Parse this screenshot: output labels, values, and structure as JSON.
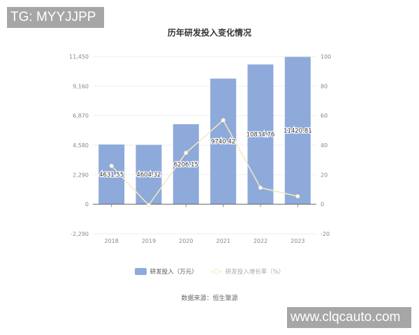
{
  "watermarks": {
    "top_left": "TG: MYYJJPP",
    "bottom_right": "www.clqcauto.com"
  },
  "chart_data": {
    "type": "bar",
    "title": "历年研发投入变化情况",
    "categories": [
      "2018",
      "2019",
      "2020",
      "2021",
      "2022",
      "2023"
    ],
    "series": [
      {
        "name": "研发投入（万元）",
        "type": "bar",
        "axis": "left",
        "color": "#8eaadb",
        "values": [
          4631.55,
          4604.32,
          6206.15,
          9740.42,
          10834.76,
          11420.81
        ],
        "labels": [
          "4631.55",
          "4604.32",
          "6206.15",
          "9740.42",
          "10834.76",
          "11420.81"
        ]
      },
      {
        "name": "研发投入增长率（%）",
        "type": "line",
        "axis": "right",
        "color": "#f6e7c1",
        "values": [
          26.0,
          -0.6,
          34.8,
          56.9,
          11.2,
          5.4
        ]
      }
    ],
    "y_left": {
      "ticks": [
        "11,450",
        "9,160",
        "6,870",
        "4,580",
        "2,290",
        "0",
        "-2,290"
      ],
      "range": [
        -2290,
        11450
      ]
    },
    "y_right": {
      "ticks": [
        "100",
        "80",
        "60",
        "40",
        "20",
        "0",
        "-20"
      ],
      "range": [
        -20,
        100
      ]
    },
    "xlabel": "",
    "ylabel": "",
    "grid": true,
    "legend_position": "bottom"
  },
  "legend": {
    "item1": "研发投入（万元）",
    "item2": "研发投入增长率（%）"
  },
  "source": "数据来源：恒生聚源"
}
